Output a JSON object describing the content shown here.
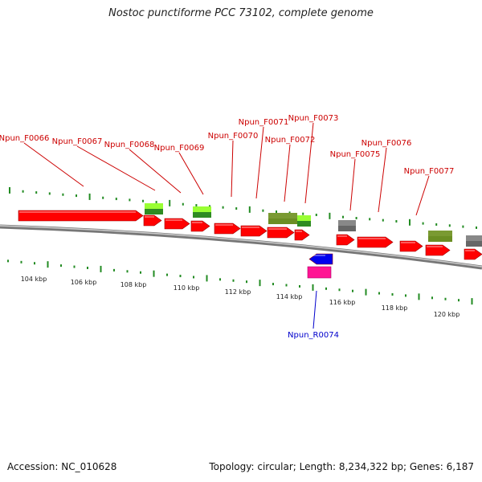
{
  "title": "Nostoc punctiforme PCC 73102, complete genome",
  "accession_label": "Accession: NC_010628",
  "summary_label": "Topology: circular; Length: 8,234,322 bp; Genes: 6,187",
  "colors": {
    "cds": "#ff0000",
    "rna": "#ff1493",
    "misc_blue": "#0000ee",
    "light_green": "#99ff33",
    "dark_green": "#2e8b22",
    "olive": "#6b8e23",
    "gray": "#666666",
    "tick": "#228b22",
    "backbone": "#888888",
    "label_forward": "#cc0000",
    "label_reverse": "#0000cc"
  },
  "ruler": {
    "unit": "kbp",
    "labels": [
      "104 kbp",
      "106 kbp",
      "108 kbp",
      "110 kbp",
      "112 kbp",
      "114 kbp",
      "116 kbp",
      "118 kbp",
      "120 kbp"
    ]
  },
  "genes": [
    {
      "name": "Npun_F0066",
      "strand": "+"
    },
    {
      "name": "Npun_F0067",
      "strand": "+"
    },
    {
      "name": "Npun_F0068",
      "strand": "+"
    },
    {
      "name": "Npun_F0069",
      "strand": "+"
    },
    {
      "name": "Npun_F0070",
      "strand": "+"
    },
    {
      "name": "Npun_F0071",
      "strand": "+"
    },
    {
      "name": "Npun_F0072",
      "strand": "+"
    },
    {
      "name": "Npun_F0073",
      "strand": "+"
    },
    {
      "name": "Npun_R0074",
      "strand": "-"
    },
    {
      "name": "Npun_F0075",
      "strand": "+"
    },
    {
      "name": "Npun_F0076",
      "strand": "+"
    },
    {
      "name": "Npun_F0077",
      "strand": "+"
    }
  ]
}
